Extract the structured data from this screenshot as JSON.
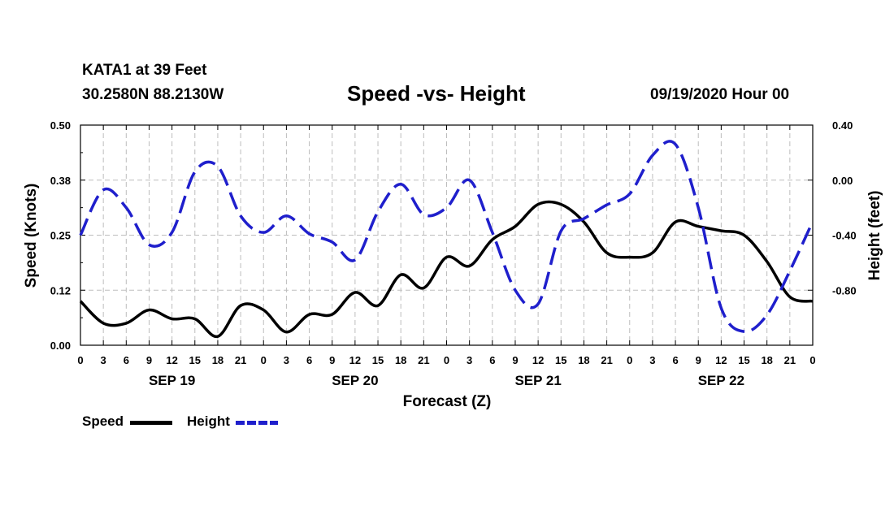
{
  "header": {
    "station": "KATA1 at 39 Feet",
    "coords": "30.2580N 88.2130W",
    "title": "Speed -vs- Height",
    "date": "09/19/2020 Hour 00"
  },
  "chart_data": {
    "type": "line",
    "title": "Speed -vs- Height",
    "xlabel": "Forecast (Z)",
    "ylabel": "Speed (Knots)",
    "y2label": "Height (feet)",
    "xlim": [
      0,
      96
    ],
    "ylim": [
      0,
      0.5
    ],
    "y2lim": [
      -1.2,
      0.4
    ],
    "yticks": [
      "0.00",
      "0.12",
      "0.25",
      "0.38",
      "0.50"
    ],
    "y2ticks": [
      "-0.80",
      "-0.40",
      "0.00",
      "0.40"
    ],
    "xtick_labels": [
      "0",
      "3",
      "6",
      "9",
      "12",
      "15",
      "18",
      "21",
      "0",
      "3",
      "6",
      "9",
      "12",
      "15",
      "18",
      "21",
      "0",
      "3",
      "6",
      "9",
      "12",
      "15",
      "18",
      "21",
      "0",
      "3",
      "6",
      "9",
      "12",
      "15",
      "18",
      "21",
      "0"
    ],
    "date_labels": [
      {
        "hour": 12,
        "label": "SEP 19"
      },
      {
        "hour": 36,
        "label": "SEP 20"
      },
      {
        "hour": 60,
        "label": "SEP 21"
      },
      {
        "hour": 84,
        "label": "SEP 22"
      }
    ],
    "grid": true,
    "legend": "bottom-left",
    "series": [
      {
        "name": "Speed",
        "axis": "left",
        "color": "#000000",
        "style": "solid",
        "x": [
          0,
          3,
          6,
          9,
          12,
          15,
          18,
          21,
          24,
          27,
          30,
          33,
          36,
          39,
          42,
          45,
          48,
          51,
          54,
          57,
          60,
          63,
          66,
          69,
          72,
          75,
          78,
          81,
          84,
          87,
          90,
          93,
          96
        ],
        "values": [
          0.1,
          0.05,
          0.05,
          0.08,
          0.06,
          0.06,
          0.02,
          0.09,
          0.08,
          0.03,
          0.07,
          0.07,
          0.12,
          0.09,
          0.16,
          0.13,
          0.2,
          0.18,
          0.24,
          0.27,
          0.32,
          0.32,
          0.28,
          0.21,
          0.2,
          0.21,
          0.28,
          0.27,
          0.26,
          0.25,
          0.19,
          0.11,
          0.1
        ]
      },
      {
        "name": "Height",
        "axis": "right",
        "color": "#1f1fcc",
        "style": "dashed",
        "x": [
          0,
          3,
          6,
          9,
          12,
          15,
          18,
          21,
          24,
          27,
          30,
          33,
          36,
          39,
          42,
          45,
          48,
          51,
          54,
          57,
          60,
          63,
          66,
          69,
          72,
          75,
          78,
          81,
          84,
          87,
          90,
          93,
          96
        ],
        "values": [
          -0.4,
          -0.07,
          -0.2,
          -0.47,
          -0.38,
          0.06,
          0.1,
          -0.26,
          -0.38,
          -0.26,
          -0.39,
          -0.45,
          -0.58,
          -0.23,
          -0.03,
          -0.25,
          -0.2,
          0.0,
          -0.38,
          -0.8,
          -0.9,
          -0.37,
          -0.28,
          -0.18,
          -0.1,
          0.18,
          0.26,
          -0.2,
          -0.93,
          -1.1,
          -0.98,
          -0.66,
          -0.3
        ]
      }
    ]
  }
}
